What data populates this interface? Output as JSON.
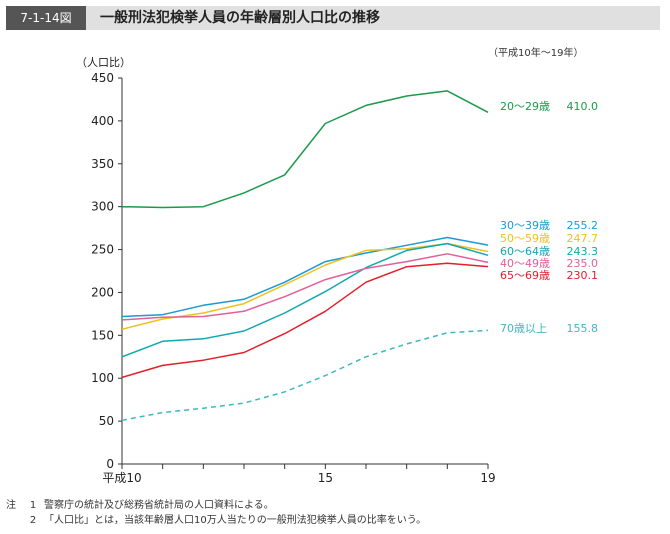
{
  "figure_id": "7-1-14図",
  "title": "一般刑法犯検挙人員の年齢層別人口比の推移",
  "range_note": "（平成10年～19年）",
  "notes": [
    {
      "prefix": "注",
      "num": "1",
      "text": "警察庁の統計及び総務省統計局の人口資料による。"
    },
    {
      "prefix": "",
      "num": "2",
      "text": "「人口比」とは，当該年齢層人口10万人当たりの一般刑法犯検挙人員の比率をいう。"
    }
  ],
  "chart_data": {
    "type": "line",
    "ylabel": "（人口比）",
    "xlabel": "",
    "ylim": [
      0,
      450
    ],
    "yticks": [
      0,
      50,
      100,
      150,
      200,
      250,
      300,
      350,
      400,
      450
    ],
    "x": [
      10,
      11,
      12,
      13,
      14,
      15,
      16,
      17,
      18,
      19
    ],
    "xtick_labels": [
      {
        "x": 10,
        "label": "平成10"
      },
      {
        "x": 15,
        "label": "15"
      },
      {
        "x": 19,
        "label": "19"
      }
    ],
    "grid": false,
    "series": [
      {
        "name": "20～29歳",
        "end_label": "410.0",
        "color": "#1a9a4a",
        "dashed": false,
        "values": [
          300,
          299,
          300,
          316,
          337,
          397,
          418,
          429,
          435,
          410.0
        ]
      },
      {
        "name": "30～39歳",
        "end_label": "255.2",
        "color": "#1a9ad6",
        "dashed": false,
        "values": [
          172,
          174,
          185,
          192,
          212,
          236,
          246,
          255,
          264,
          255.2
        ]
      },
      {
        "name": "50～59歳",
        "end_label": "247.7",
        "color": "#f0c020",
        "dashed": false,
        "values": [
          157,
          169,
          176,
          187,
          209,
          232,
          249,
          251,
          257,
          247.7
        ]
      },
      {
        "name": "60～64歳",
        "end_label": "243.3",
        "color": "#10a8b0",
        "dashed": false,
        "values": [
          125,
          143,
          146,
          155,
          176,
          201,
          229,
          249,
          257,
          243.3
        ]
      },
      {
        "name": "40～49歳",
        "end_label": "235.0",
        "color": "#e0609a",
        "dashed": false,
        "values": [
          168,
          171,
          172,
          178,
          195,
          215,
          228,
          236,
          245,
          235.0
        ]
      },
      {
        "name": "65～69歳",
        "end_label": "230.1",
        "color": "#e0202a",
        "dashed": false,
        "values": [
          101,
          115,
          121,
          130,
          152,
          178,
          212,
          230,
          234,
          230.1
        ]
      },
      {
        "name": "70歳以上",
        "end_label": "155.8",
        "color": "#40b8c0",
        "dashed": true,
        "values": [
          51,
          60,
          65,
          71,
          84,
          103,
          125,
          140,
          153,
          155.8
        ]
      }
    ]
  }
}
